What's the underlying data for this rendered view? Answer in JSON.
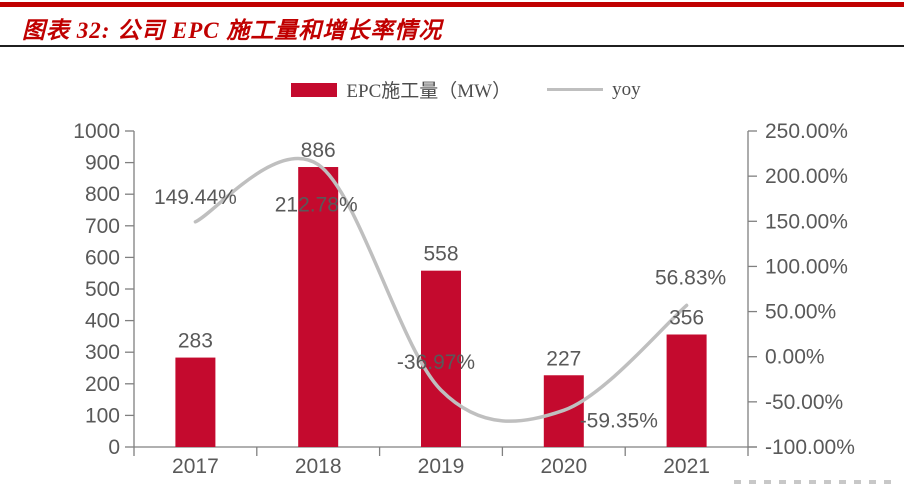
{
  "header": {
    "title": "图表 32: 公司 EPC 施工量和增长率情况"
  },
  "legend": {
    "bar_label": "EPC施工量（MW）",
    "line_label": "yoy"
  },
  "chart_data": {
    "type": "bar+line",
    "title": "公司EPC施工量和增长率情况",
    "categories": [
      "2017",
      "2018",
      "2019",
      "2020",
      "2021"
    ],
    "series": [
      {
        "name": "EPC施工量（MW）",
        "type": "bar",
        "axis": "left",
        "color": "#C40A2E",
        "values": [
          283,
          886,
          558,
          227,
          356
        ],
        "data_labels": [
          "283",
          "886",
          "558",
          "227",
          "356"
        ]
      },
      {
        "name": "yoy",
        "type": "line",
        "axis": "right",
        "color": "#BFBFBF",
        "smooth": true,
        "values": [
          149.44,
          212.78,
          -36.97,
          -59.35,
          56.83
        ],
        "data_labels": [
          "149.44%",
          "212.78%",
          "-36.97%",
          "-59.35%",
          "56.83%"
        ],
        "label_offsets": [
          {
            "dx": 0,
            "dy": -25
          },
          {
            "dx": -2,
            "dy": 40
          },
          {
            "dx": -5,
            "dy": -28
          },
          {
            "dx": 55,
            "dy": 10
          },
          {
            "dx": 4,
            "dy": -28
          }
        ]
      }
    ],
    "left_axis": {
      "min": 0,
      "max": 1000,
      "step": 100,
      "tick_labels": [
        "0",
        "100",
        "200",
        "300",
        "400",
        "500",
        "600",
        "700",
        "800",
        "900",
        "1000"
      ]
    },
    "right_axis": {
      "min": -100,
      "max": 250,
      "step": 50,
      "tick_labels": [
        "-100.00%",
        "-50.00%",
        "0.00%",
        "50.00%",
        "100.00%",
        "150.00%",
        "200.00%",
        "250.00%"
      ]
    },
    "grid": false,
    "legend_position": "top-center",
    "text_color": "#595959",
    "axis_color": "#808080"
  }
}
